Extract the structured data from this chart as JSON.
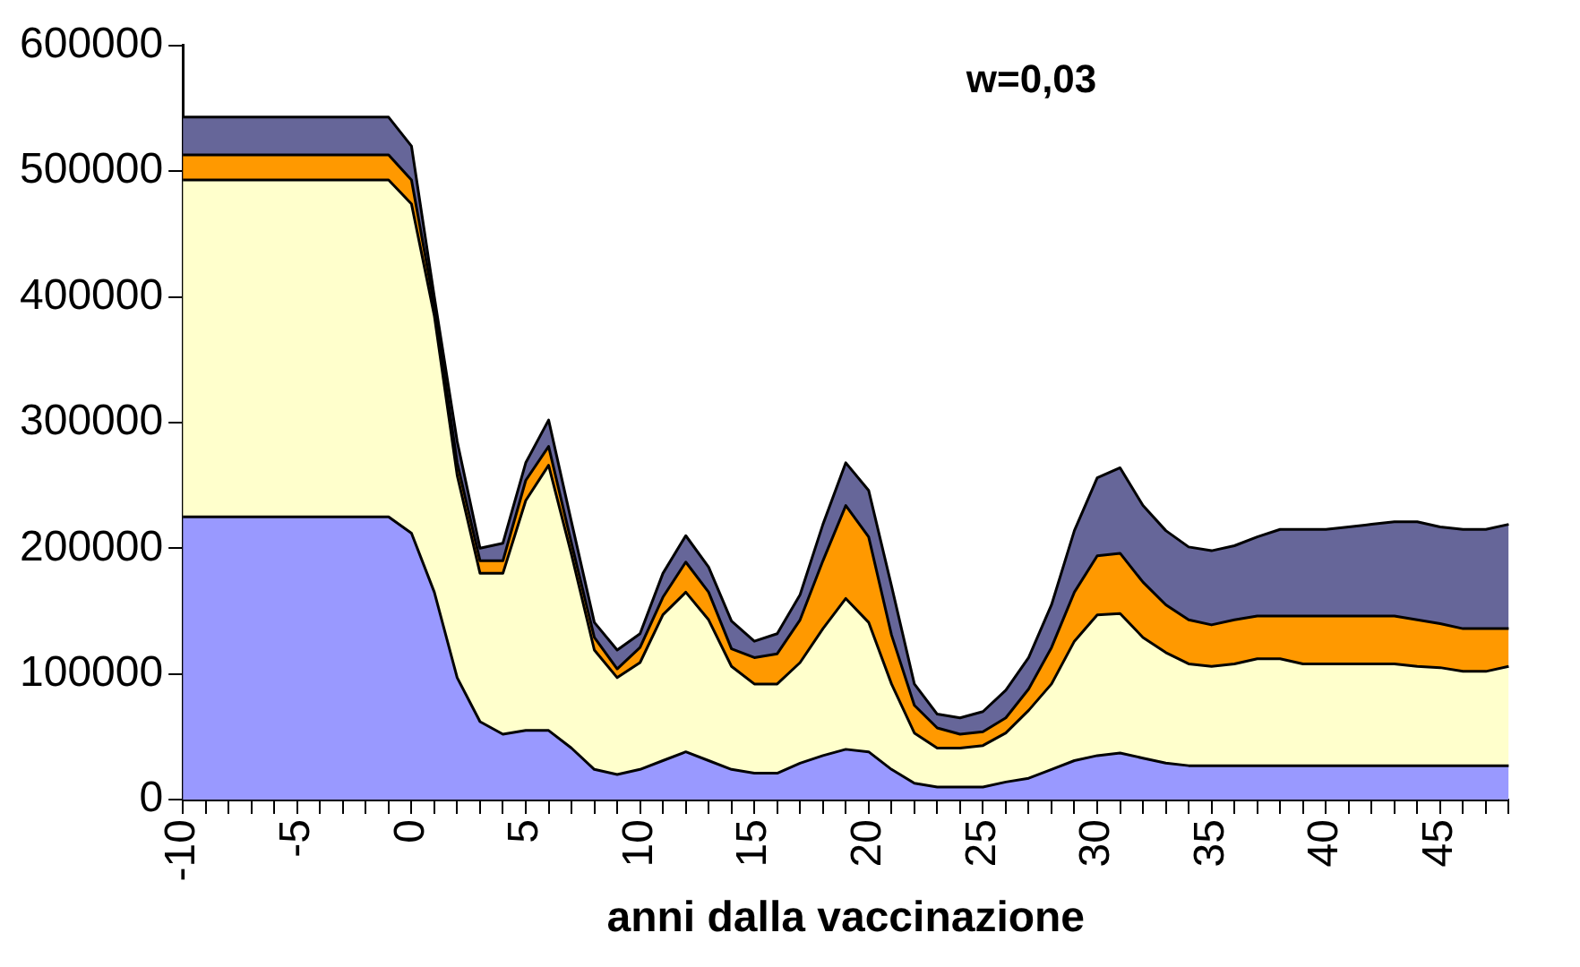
{
  "chart_data": {
    "type": "area",
    "stacked": true,
    "xlabel": "anni dalla vaccinazione",
    "annotations": [
      "w=0,03"
    ],
    "categories": [
      "-10",
      null,
      null,
      null,
      null,
      "-5",
      null,
      null,
      null,
      null,
      "0",
      null,
      null,
      null,
      null,
      "5",
      null,
      null,
      null,
      null,
      "10",
      null,
      null,
      null,
      null,
      "15",
      null,
      null,
      null,
      null,
      "20",
      null,
      null,
      null,
      null,
      "25",
      null,
      null,
      null,
      null,
      "30",
      null,
      null,
      null,
      null,
      "35",
      null,
      null,
      null,
      null,
      "40",
      null,
      null,
      null,
      null,
      "45",
      null,
      null,
      null
    ],
    "ylim": [
      0,
      600000
    ],
    "yticks": [
      0,
      100000,
      200000,
      300000,
      400000,
      500000,
      600000
    ],
    "series": [
      {
        "color": "#9999ff",
        "values": [
          225000,
          225000,
          225000,
          225000,
          225000,
          225000,
          225000,
          225000,
          225000,
          225000,
          212000,
          165000,
          97000,
          62000,
          52000,
          55000,
          55000,
          41000,
          24000,
          20000,
          24000,
          31000,
          38000,
          31000,
          24000,
          21000,
          21000,
          29000,
          35000,
          40000,
          38000,
          24000,
          13000,
          10000,
          10000,
          10000,
          14000,
          17000,
          24000,
          31000,
          35000,
          37000,
          33000,
          29000,
          27000,
          27000,
          27000,
          27000,
          27000,
          27000,
          27000,
          27000,
          27000,
          27000,
          27000,
          27000,
          27000,
          27000,
          27000
        ]
      },
      {
        "color": "#ffffcc",
        "values": [
          268000,
          268000,
          268000,
          268000,
          268000,
          268000,
          268000,
          268000,
          268000,
          268000,
          262000,
          220000,
          161000,
          118000,
          128000,
          183000,
          211000,
          154000,
          95000,
          77000,
          85000,
          116000,
          127000,
          112000,
          82000,
          71000,
          71000,
          80000,
          101000,
          120000,
          103000,
          68000,
          40000,
          31000,
          31000,
          33000,
          39000,
          54000,
          68000,
          95000,
          112000,
          111000,
          96000,
          88000,
          81000,
          79000,
          81000,
          85000,
          85000,
          81000,
          81000,
          81000,
          81000,
          81000,
          79000,
          78000,
          75000,
          75000,
          79000
        ]
      },
      {
        "color": "#ff9900",
        "values": [
          20000,
          20000,
          20000,
          20000,
          20000,
          20000,
          20000,
          20000,
          20000,
          20000,
          19000,
          8000,
          10000,
          10000,
          10000,
          16000,
          15000,
          9000,
          10000,
          7000,
          12000,
          14000,
          24000,
          22000,
          14000,
          21000,
          24000,
          34000,
          54000,
          74000,
          68000,
          39000,
          22000,
          16000,
          11000,
          11000,
          12000,
          17000,
          29000,
          39000,
          47000,
          48000,
          44000,
          38000,
          35000,
          33000,
          35000,
          34000,
          34000,
          38000,
          38000,
          38000,
          38000,
          38000,
          37000,
          35000,
          34000,
          34000,
          30000
        ]
      },
      {
        "color": "#666699",
        "values": [
          30000,
          30000,
          30000,
          30000,
          30000,
          30000,
          30000,
          30000,
          30000,
          30000,
          27000,
          7000,
          17000,
          10000,
          14000,
          14000,
          21000,
          17000,
          12000,
          15000,
          11000,
          19000,
          21000,
          20000,
          22000,
          13000,
          16000,
          20000,
          29000,
          34000,
          37000,
          39000,
          17000,
          11000,
          13000,
          16000,
          22000,
          25000,
          34000,
          49000,
          62000,
          68000,
          61000,
          59000,
          58000,
          59000,
          59000,
          63000,
          69000,
          69000,
          69000,
          71000,
          73000,
          75000,
          78000,
          77000,
          79000,
          79000,
          83000
        ]
      }
    ]
  }
}
